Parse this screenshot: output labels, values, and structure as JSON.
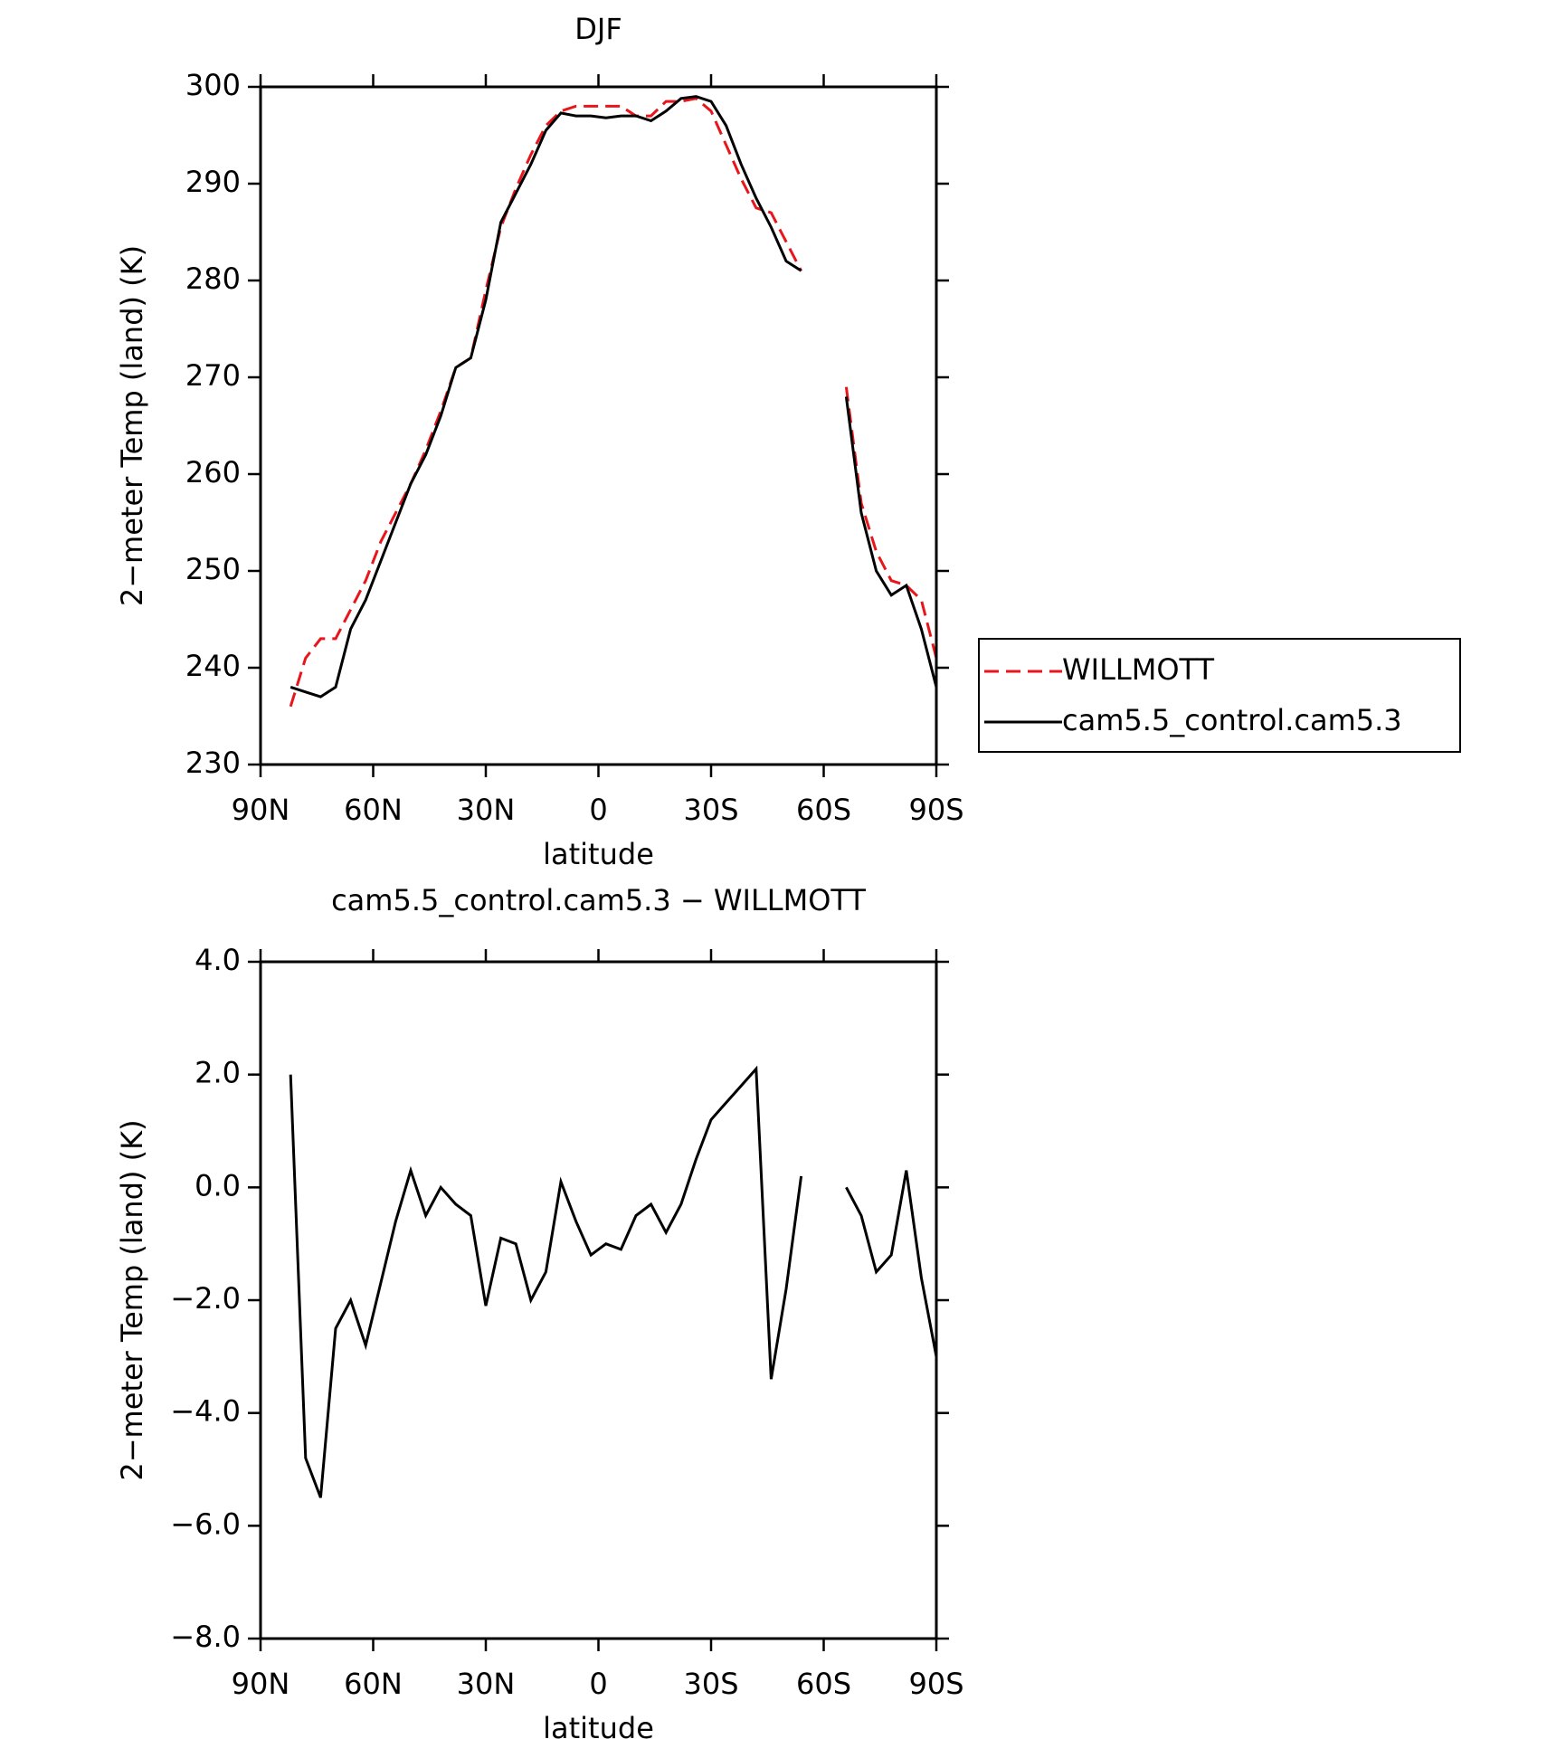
{
  "chart_data": [
    {
      "type": "line",
      "title": "DJF",
      "xlabel": "latitude",
      "ylabel": "2−meter Temp (land) (K)",
      "x": [
        82,
        78,
        74,
        70,
        66,
        62,
        58,
        54,
        50,
        46,
        42,
        38,
        34,
        30,
        26,
        22,
        18,
        14,
        10,
        6,
        2,
        -2,
        -6,
        -10,
        -14,
        -18,
        -22,
        -26,
        -30,
        -34,
        -38,
        -42,
        -46,
        -50,
        -54,
        -58,
        -62,
        -66,
        -70,
        -74,
        -78,
        -82,
        -86,
        -90
      ],
      "xlim": [
        90,
        -90
      ],
      "xticks": [
        {
          "value": 90,
          "label": "90N"
        },
        {
          "value": 60,
          "label": "60N"
        },
        {
          "value": 30,
          "label": "30N"
        },
        0,
        {
          "value": -30,
          "label": "30S"
        },
        {
          "value": -60,
          "label": "60S"
        },
        {
          "value": -90,
          "label": "90S"
        }
      ],
      "ylim": [
        230,
        300
      ],
      "yticks": [
        230,
        240,
        250,
        260,
        270,
        280,
        290,
        300
      ],
      "legend": "outside-right",
      "series": [
        {
          "name": "WILLMOTT",
          "color": "#e8151b",
          "dashed": true,
          "values": [
            236,
            241,
            243,
            243,
            246,
            249,
            253,
            256,
            259,
            262.5,
            266.5,
            271,
            272,
            279,
            285.5,
            289.5,
            293,
            296,
            297.5,
            298,
            298,
            298,
            298,
            297,
            297,
            298.5,
            298.5,
            298.8,
            297.5,
            294,
            290.5,
            287.5,
            287,
            284,
            281,
            null,
            null,
            269,
            257,
            252,
            249,
            248.5,
            247,
            241
          ]
        },
        {
          "name": "cam5.5_control.cam5.3",
          "color": "#000000",
          "dashed": false,
          "values": [
            238,
            237.5,
            237,
            238,
            244,
            247,
            251,
            255,
            259,
            262,
            266,
            271,
            272,
            278,
            286,
            289,
            292,
            295.5,
            297.3,
            297,
            297,
            296.8,
            297,
            297,
            296.5,
            297.5,
            298.8,
            299,
            298.5,
            296,
            292,
            288.5,
            285.5,
            282,
            281,
            null,
            null,
            268,
            256,
            250,
            247.5,
            248.5,
            244,
            238
          ]
        }
      ]
    },
    {
      "type": "line",
      "title": "cam5.5_control.cam5.3 − WILLMOTT",
      "xlabel": "latitude",
      "ylabel": "2−meter Temp (land) (K)",
      "x": [
        82,
        78,
        74,
        70,
        66,
        62,
        58,
        54,
        50,
        46,
        42,
        38,
        34,
        30,
        26,
        22,
        18,
        14,
        10,
        6,
        2,
        -2,
        -6,
        -10,
        -14,
        -18,
        -22,
        -26,
        -30,
        -34,
        -38,
        -42,
        -46,
        -50,
        -54,
        -58,
        -62,
        -66,
        -70,
        -74,
        -78,
        -82,
        -86,
        -90
      ],
      "xlim": [
        90,
        -90
      ],
      "xticks": [
        {
          "value": 90,
          "label": "90N"
        },
        {
          "value": 60,
          "label": "60N"
        },
        {
          "value": 30,
          "label": "30N"
        },
        0,
        {
          "value": -30,
          "label": "30S"
        },
        {
          "value": -60,
          "label": "60S"
        },
        {
          "value": -90,
          "label": "90S"
        }
      ],
      "ylim": [
        -8,
        4
      ],
      "yticks": [
        {
          "value": -8,
          "label": "−8.0"
        },
        {
          "value": -6,
          "label": "−6.0"
        },
        {
          "value": -4,
          "label": "−4.0"
        },
        {
          "value": -2,
          "label": "−2.0"
        },
        {
          "value": 0,
          "label": "0.0"
        },
        {
          "value": 2,
          "label": "2.0"
        },
        {
          "value": 4,
          "label": "4.0"
        }
      ],
      "series": [
        {
          "color": "#000000",
          "dashed": false,
          "values": [
            2.0,
            -4.8,
            -5.5,
            -2.5,
            -2.0,
            -2.8,
            -1.7,
            -0.6,
            0.3,
            -0.5,
            0.0,
            -0.3,
            -0.5,
            -2.1,
            -0.9,
            -1.0,
            -2.0,
            -1.5,
            0.1,
            -0.6,
            -1.2,
            -1.0,
            -1.1,
            -0.5,
            -0.3,
            -0.8,
            -0.3,
            0.5,
            1.2,
            1.5,
            1.8,
            2.1,
            -3.4,
            -1.8,
            0.2,
            null,
            null,
            0.0,
            -0.5,
            -1.5,
            -1.2,
            0.3,
            -1.6,
            -3.0
          ]
        }
      ]
    }
  ]
}
